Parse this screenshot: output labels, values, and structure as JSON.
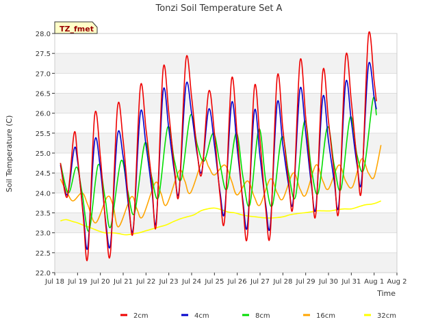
{
  "chart_data": {
    "type": "line",
    "title": "Tonzi Soil Temperature Set A",
    "xlabel": "Time",
    "ylabel": "Soil Temperature (C)",
    "ylim": [
      22.0,
      28.0
    ],
    "xlim": [
      18.0,
      33.0
    ],
    "yticks": [
      "22.0",
      "22.5",
      "23.0",
      "23.5",
      "24.0",
      "24.5",
      "25.0",
      "25.5",
      "26.0",
      "26.5",
      "27.0",
      "27.5",
      "28.0"
    ],
    "xticks": [
      {
        "v": 18,
        "label": "Jul 18"
      },
      {
        "v": 19,
        "label": "Jul 19"
      },
      {
        "v": 20,
        "label": "Jul 20"
      },
      {
        "v": 21,
        "label": "Jul 21"
      },
      {
        "v": 22,
        "label": "Jul 22"
      },
      {
        "v": 23,
        "label": "Jul 23"
      },
      {
        "v": 24,
        "label": "Jul 24"
      },
      {
        "v": 25,
        "label": "Jul 25"
      },
      {
        "v": 26,
        "label": "Jul 26"
      },
      {
        "v": 27,
        "label": "Jul 27"
      },
      {
        "v": 28,
        "label": "Jul 28"
      },
      {
        "v": 29,
        "label": "Jul 29"
      },
      {
        "v": 30,
        "label": "Jul 30"
      },
      {
        "v": 31,
        "label": "Jul 31"
      },
      {
        "v": 32,
        "label": "Aug 1"
      },
      {
        "v": 33,
        "label": "Aug 2"
      }
    ],
    "annotation": "TZ_fmet",
    "grid": true,
    "legend_position": "bottom",
    "series": [
      {
        "name": "2cm",
        "color": "#ee0000",
        "points": [
          [
            18.25,
            24.75
          ],
          [
            18.55,
            23.9
          ],
          [
            18.85,
            25.5
          ],
          [
            19.0,
            24.9
          ],
          [
            19.25,
            23.4
          ],
          [
            19.45,
            22.4
          ],
          [
            19.75,
            25.95
          ],
          [
            20.0,
            24.9
          ],
          [
            20.25,
            23.1
          ],
          [
            20.45,
            22.55
          ],
          [
            20.75,
            26.15
          ],
          [
            21.0,
            25.3
          ],
          [
            21.25,
            23.7
          ],
          [
            21.45,
            23.1
          ],
          [
            21.75,
            26.65
          ],
          [
            22.0,
            25.6
          ],
          [
            22.25,
            24.3
          ],
          [
            22.45,
            23.2
          ],
          [
            22.75,
            27.1
          ],
          [
            23.0,
            26.0
          ],
          [
            23.25,
            24.6
          ],
          [
            23.45,
            24.0
          ],
          [
            23.75,
            27.35
          ],
          [
            24.0,
            26.4
          ],
          [
            24.25,
            25.0
          ],
          [
            24.45,
            24.5
          ],
          [
            24.75,
            26.55
          ],
          [
            25.0,
            25.5
          ],
          [
            25.25,
            23.9
          ],
          [
            25.45,
            23.35
          ],
          [
            25.75,
            26.85
          ],
          [
            26.0,
            25.4
          ],
          [
            26.25,
            23.7
          ],
          [
            26.45,
            22.95
          ],
          [
            26.75,
            26.65
          ],
          [
            27.0,
            25.3
          ],
          [
            27.25,
            23.6
          ],
          [
            27.45,
            23.0
          ],
          [
            27.75,
            26.9
          ],
          [
            28.0,
            25.6
          ],
          [
            28.25,
            24.3
          ],
          [
            28.45,
            23.7
          ],
          [
            28.75,
            27.3
          ],
          [
            29.0,
            25.9
          ],
          [
            29.25,
            24.3
          ],
          [
            29.45,
            23.5
          ],
          [
            29.75,
            27.05
          ],
          [
            30.0,
            25.8
          ],
          [
            30.25,
            24.5
          ],
          [
            30.45,
            23.55
          ],
          [
            30.75,
            27.4
          ],
          [
            31.0,
            26.3
          ],
          [
            31.25,
            24.8
          ],
          [
            31.45,
            24.1
          ],
          [
            31.75,
            27.95
          ],
          [
            32.0,
            26.8
          ],
          [
            32.1,
            26.3
          ]
        ]
      },
      {
        "name": "4cm",
        "color": "#0000cc",
        "points": [
          [
            18.25,
            24.7
          ],
          [
            18.55,
            23.95
          ],
          [
            18.85,
            25.1
          ],
          [
            19.0,
            24.8
          ],
          [
            19.25,
            23.5
          ],
          [
            19.45,
            22.65
          ],
          [
            19.75,
            25.3
          ],
          [
            20.0,
            24.6
          ],
          [
            20.25,
            23.2
          ],
          [
            20.45,
            22.75
          ],
          [
            20.75,
            25.45
          ],
          [
            21.0,
            24.9
          ],
          [
            21.25,
            23.6
          ],
          [
            21.45,
            23.15
          ],
          [
            21.75,
            26.0
          ],
          [
            22.0,
            25.2
          ],
          [
            22.25,
            24.1
          ],
          [
            22.45,
            23.3
          ],
          [
            22.75,
            26.55
          ],
          [
            23.0,
            25.6
          ],
          [
            23.25,
            24.5
          ],
          [
            23.45,
            24.05
          ],
          [
            23.75,
            26.7
          ],
          [
            24.0,
            26.0
          ],
          [
            24.25,
            24.95
          ],
          [
            24.45,
            24.55
          ],
          [
            24.75,
            26.1
          ],
          [
            25.0,
            25.2
          ],
          [
            25.25,
            24.0
          ],
          [
            25.45,
            23.55
          ],
          [
            25.75,
            26.25
          ],
          [
            26.0,
            25.1
          ],
          [
            26.25,
            23.8
          ],
          [
            26.45,
            23.2
          ],
          [
            26.75,
            26.05
          ],
          [
            27.0,
            24.9
          ],
          [
            27.25,
            23.7
          ],
          [
            27.45,
            23.2
          ],
          [
            27.75,
            26.25
          ],
          [
            28.0,
            25.2
          ],
          [
            28.25,
            24.2
          ],
          [
            28.45,
            23.8
          ],
          [
            28.75,
            26.6
          ],
          [
            29.0,
            25.5
          ],
          [
            29.25,
            24.2
          ],
          [
            29.45,
            23.65
          ],
          [
            29.75,
            26.4
          ],
          [
            30.0,
            25.3
          ],
          [
            30.25,
            24.3
          ],
          [
            30.45,
            23.7
          ],
          [
            30.75,
            26.75
          ],
          [
            31.0,
            25.8
          ],
          [
            31.25,
            24.7
          ],
          [
            31.45,
            24.3
          ],
          [
            31.75,
            27.2
          ],
          [
            32.0,
            26.4
          ],
          [
            32.1,
            26.1
          ]
        ]
      },
      {
        "name": "8cm",
        "color": "#00dd00",
        "points": [
          [
            18.25,
            24.75
          ],
          [
            18.6,
            24.0
          ],
          [
            18.95,
            24.65
          ],
          [
            19.2,
            24.0
          ],
          [
            19.5,
            23.05
          ],
          [
            19.9,
            24.7
          ],
          [
            20.2,
            23.9
          ],
          [
            20.45,
            23.15
          ],
          [
            20.9,
            24.8
          ],
          [
            21.2,
            24.05
          ],
          [
            21.5,
            23.5
          ],
          [
            21.95,
            25.25
          ],
          [
            22.25,
            24.4
          ],
          [
            22.55,
            23.9
          ],
          [
            22.95,
            25.65
          ],
          [
            23.25,
            24.8
          ],
          [
            23.55,
            24.35
          ],
          [
            23.95,
            25.95
          ],
          [
            24.25,
            25.2
          ],
          [
            24.55,
            24.8
          ],
          [
            24.95,
            25.5
          ],
          [
            25.25,
            24.7
          ],
          [
            25.55,
            24.1
          ],
          [
            25.95,
            25.5
          ],
          [
            26.25,
            24.4
          ],
          [
            26.55,
            23.7
          ],
          [
            26.95,
            25.6
          ],
          [
            27.25,
            24.3
          ],
          [
            27.55,
            23.7
          ],
          [
            27.95,
            25.4
          ],
          [
            28.25,
            24.5
          ],
          [
            28.55,
            23.9
          ],
          [
            28.95,
            25.8
          ],
          [
            29.25,
            24.6
          ],
          [
            29.55,
            24.0
          ],
          [
            29.95,
            25.65
          ],
          [
            30.25,
            24.7
          ],
          [
            30.55,
            24.1
          ],
          [
            30.95,
            25.9
          ],
          [
            31.25,
            24.95
          ],
          [
            31.55,
            24.6
          ],
          [
            31.95,
            26.35
          ],
          [
            32.1,
            25.95
          ]
        ]
      },
      {
        "name": "16cm",
        "color": "#ffa500",
        "points": [
          [
            18.25,
            24.35
          ],
          [
            18.55,
            24.0
          ],
          [
            18.8,
            23.8
          ],
          [
            19.2,
            24.0
          ],
          [
            19.45,
            23.7
          ],
          [
            19.8,
            23.25
          ],
          [
            20.3,
            23.9
          ],
          [
            20.55,
            23.7
          ],
          [
            20.8,
            23.15
          ],
          [
            21.35,
            23.9
          ],
          [
            21.6,
            23.6
          ],
          [
            21.85,
            23.4
          ],
          [
            22.4,
            24.25
          ],
          [
            22.65,
            24.0
          ],
          [
            22.9,
            23.7
          ],
          [
            23.45,
            24.55
          ],
          [
            23.7,
            24.3
          ],
          [
            23.95,
            24.0
          ],
          [
            24.5,
            24.85
          ],
          [
            24.75,
            24.65
          ],
          [
            25.0,
            24.45
          ],
          [
            25.45,
            24.7
          ],
          [
            25.75,
            24.3
          ],
          [
            26.0,
            23.95
          ],
          [
            26.45,
            24.3
          ],
          [
            26.75,
            23.9
          ],
          [
            27.0,
            23.7
          ],
          [
            27.45,
            24.35
          ],
          [
            27.75,
            24.0
          ],
          [
            28.0,
            23.85
          ],
          [
            28.45,
            24.5
          ],
          [
            28.75,
            24.1
          ],
          [
            29.0,
            23.95
          ],
          [
            29.45,
            24.7
          ],
          [
            29.75,
            24.3
          ],
          [
            30.0,
            24.1
          ],
          [
            30.45,
            24.7
          ],
          [
            30.75,
            24.3
          ],
          [
            31.05,
            24.15
          ],
          [
            31.45,
            24.85
          ],
          [
            31.75,
            24.5
          ],
          [
            32.0,
            24.4
          ],
          [
            32.3,
            25.2
          ]
        ]
      },
      {
        "name": "32cm",
        "color": "#ffff00",
        "points": [
          [
            18.25,
            23.3
          ],
          [
            18.5,
            23.33
          ],
          [
            18.8,
            23.28
          ],
          [
            19.0,
            23.25
          ],
          [
            19.3,
            23.18
          ],
          [
            19.6,
            23.12
          ],
          [
            19.9,
            23.05
          ],
          [
            20.2,
            23.0
          ],
          [
            20.5,
            23.0
          ],
          [
            20.8,
            22.98
          ],
          [
            21.1,
            22.95
          ],
          [
            21.4,
            22.97
          ],
          [
            21.7,
            23.0
          ],
          [
            22.0,
            23.05
          ],
          [
            22.3,
            23.1
          ],
          [
            22.6,
            23.15
          ],
          [
            22.9,
            23.2
          ],
          [
            23.2,
            23.28
          ],
          [
            23.5,
            23.35
          ],
          [
            23.8,
            23.4
          ],
          [
            24.1,
            23.45
          ],
          [
            24.4,
            23.55
          ],
          [
            24.7,
            23.6
          ],
          [
            25.0,
            23.62
          ],
          [
            25.3,
            23.58
          ],
          [
            25.6,
            23.52
          ],
          [
            25.9,
            23.5
          ],
          [
            26.2,
            23.45
          ],
          [
            26.5,
            23.42
          ],
          [
            26.8,
            23.4
          ],
          [
            27.1,
            23.38
          ],
          [
            27.4,
            23.37
          ],
          [
            27.7,
            23.38
          ],
          [
            28.0,
            23.4
          ],
          [
            28.3,
            23.45
          ],
          [
            28.6,
            23.48
          ],
          [
            28.9,
            23.5
          ],
          [
            29.2,
            23.52
          ],
          [
            29.5,
            23.55
          ],
          [
            29.8,
            23.55
          ],
          [
            30.1,
            23.55
          ],
          [
            30.4,
            23.58
          ],
          [
            30.7,
            23.6
          ],
          [
            31.0,
            23.6
          ],
          [
            31.3,
            23.65
          ],
          [
            31.6,
            23.7
          ],
          [
            31.9,
            23.72
          ],
          [
            32.1,
            23.75
          ],
          [
            32.3,
            23.8
          ]
        ]
      }
    ]
  }
}
